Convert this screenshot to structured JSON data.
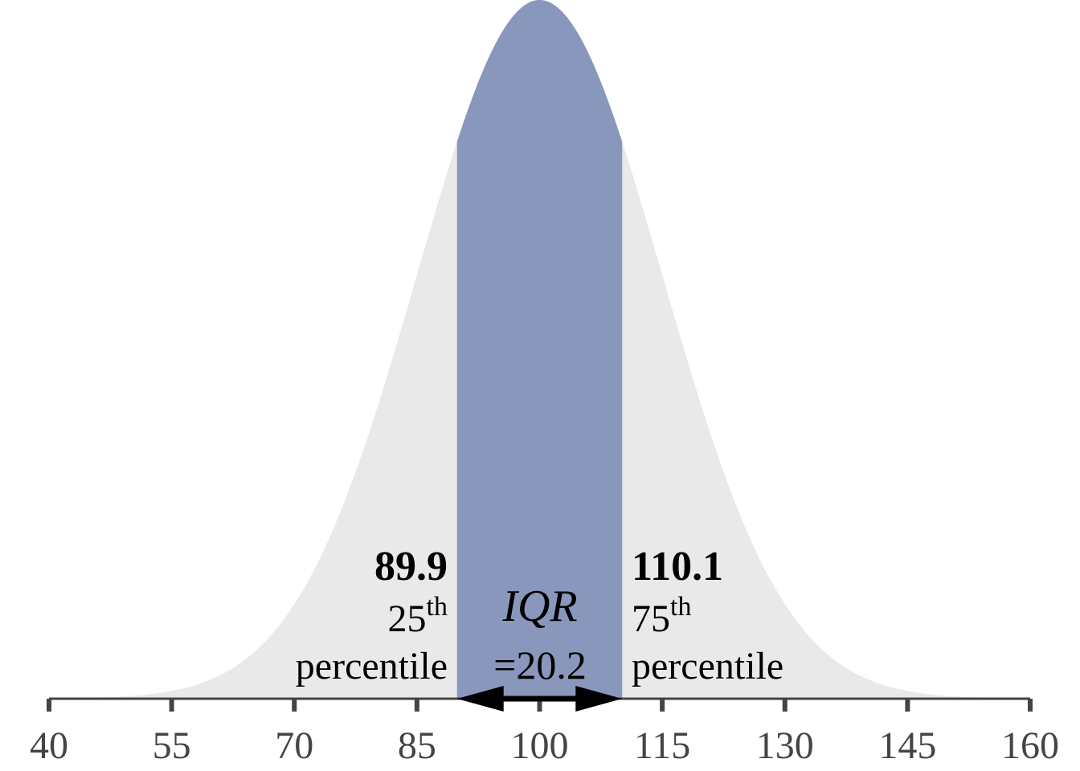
{
  "chart_data": {
    "type": "area",
    "distribution": "normal",
    "mean": 100,
    "sd": 15,
    "xlim": [
      40,
      160
    ],
    "x_ticks": [
      40,
      55,
      70,
      85,
      100,
      115,
      130,
      145,
      160
    ],
    "grid": false,
    "shaded_range": [
      89.9,
      110.1
    ],
    "colors": {
      "curve_fill": "#e9e9e9",
      "iqr_fill": "#8a97bd",
      "axis": "#444444",
      "arrow": "#000000"
    },
    "q1": {
      "value": "89.9",
      "rank": "25",
      "suffix": "th",
      "label": "percentile"
    },
    "q3": {
      "value": "110.1",
      "rank": "75",
      "suffix": "th",
      "label": "percentile"
    },
    "iqr": {
      "label": "IQR",
      "value": "=20.2"
    }
  }
}
